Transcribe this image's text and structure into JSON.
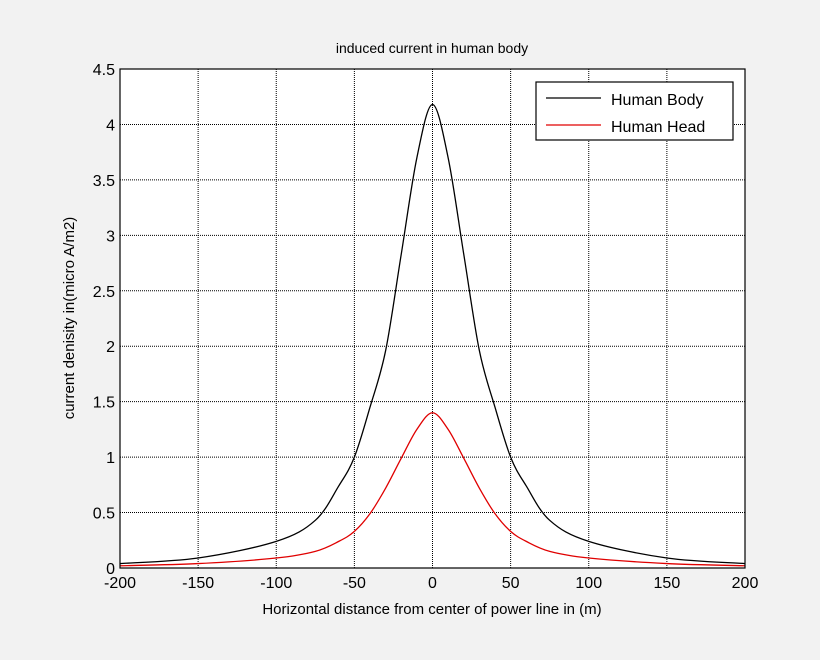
{
  "chart_data": {
    "type": "line",
    "title": "induced current in human body",
    "xlabel": "Horizontal distance from center of power line in (m)",
    "ylabel": "current denisity in(micro A/m2)",
    "xlim": [
      -200,
      200
    ],
    "ylim": [
      0,
      4.5
    ],
    "xticks": [
      -200,
      -150,
      -100,
      -50,
      0,
      50,
      100,
      150,
      200
    ],
    "yticks": [
      0,
      0.5,
      1,
      1.5,
      2,
      2.5,
      3,
      3.5,
      4,
      4.5
    ],
    "ytick_labels": [
      "0",
      "0.5",
      "1",
      "1.5",
      "2",
      "2.5",
      "3",
      "3.5",
      "4",
      "4.5"
    ],
    "grid": true,
    "legend_position": "top-right",
    "x": [
      -200,
      -150,
      -100,
      -75,
      -60,
      -50,
      -40,
      -30,
      -20,
      -10,
      0,
      10,
      20,
      30,
      40,
      50,
      60,
      75,
      100,
      150,
      200
    ],
    "series": [
      {
        "name": "Human Body",
        "color": "#000000",
        "values": [
          0.04,
          0.09,
          0.24,
          0.43,
          0.74,
          1.0,
          1.45,
          1.96,
          2.83,
          3.7,
          4.18,
          3.7,
          2.83,
          1.96,
          1.45,
          1.0,
          0.74,
          0.43,
          0.24,
          0.09,
          0.04
        ]
      },
      {
        "name": "Human Head",
        "color": "#e00000",
        "values": [
          0.02,
          0.04,
          0.09,
          0.15,
          0.24,
          0.33,
          0.49,
          0.72,
          0.99,
          1.25,
          1.4,
          1.25,
          0.99,
          0.72,
          0.49,
          0.33,
          0.24,
          0.15,
          0.09,
          0.04,
          0.02
        ]
      }
    ]
  }
}
